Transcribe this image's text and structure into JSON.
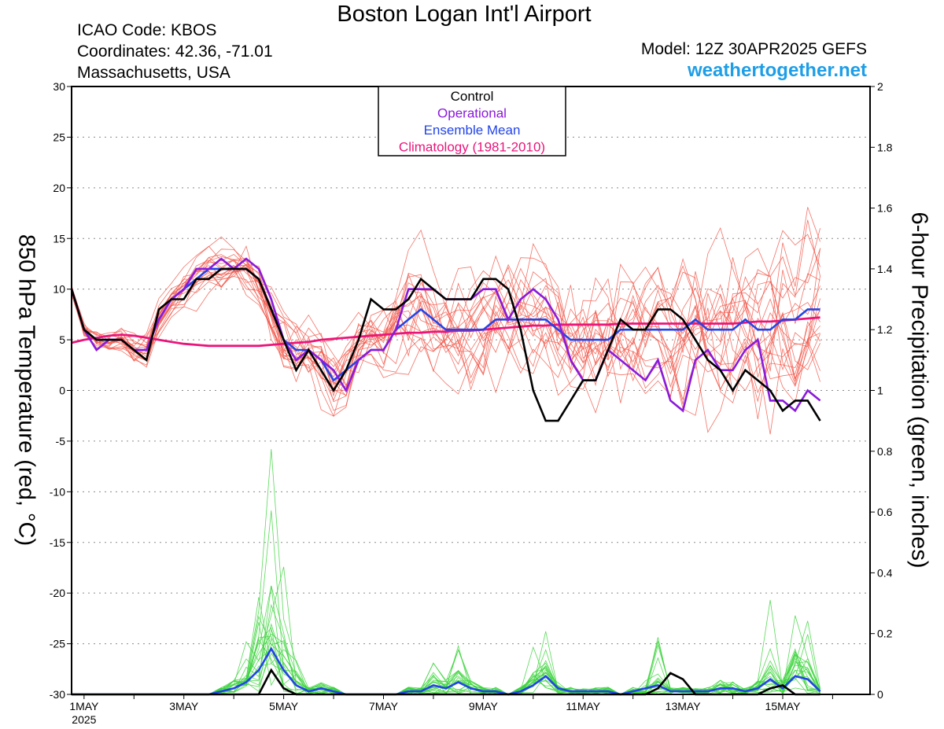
{
  "header": {
    "title": "Boston Logan Int'l Airport",
    "icao": "ICAO Code: KBOS",
    "coordinates": "Coordinates: 42.36, -71.01",
    "region": "Massachusetts, USA",
    "model": "Model: 12Z 30APR2025 GEFS",
    "website": "weathertogether.net"
  },
  "chart_data": {
    "type": "line",
    "title": "Boston Logan Int'l Airport",
    "ylabel_left": "850 hPa Temperature (red, °C)",
    "ylabel_right": "6-hour Precipitation (green, inches)",
    "x_start": "2025-04-30T18:00",
    "x_end": "2025-05-16T18:00",
    "x_tick_labels": [
      "1MAY",
      "3MAY",
      "5MAY",
      "7MAY",
      "9MAY",
      "11MAY",
      "13MAY",
      "15MAY"
    ],
    "x_year_label": "2025",
    "ylim_left": [
      -30,
      30
    ],
    "yticks_left": [
      "30",
      "25",
      "20",
      "15",
      "10",
      "5",
      "0",
      "-5",
      "-10",
      "-15",
      "-20",
      "-25",
      "-30"
    ],
    "ylim_right": [
      0,
      2
    ],
    "yticks_right": [
      "2",
      "1.8",
      "1.6",
      "1.4",
      "1.2",
      "1",
      "0.8",
      "0.6",
      "0.4",
      "0.2",
      "0"
    ],
    "grid": true,
    "legend_position": "top-center",
    "legend": [
      {
        "label": "Control",
        "color": "#000000"
      },
      {
        "label": "Operational",
        "color": "#8a1adb"
      },
      {
        "label": "Ensemble Mean",
        "color": "#2244e8"
      },
      {
        "label": "Climatology (1981-2010)",
        "color": "#ea157a"
      }
    ],
    "colors": {
      "control": "#000000",
      "operational": "#8a1adb",
      "mean": "#2244e8",
      "climatology": "#ea157a",
      "members_temp": "#f25a4e",
      "members_precip": "#3cd43c"
    },
    "temperature": {
      "control": [
        10,
        6,
        5,
        5,
        5,
        4,
        3,
        8,
        9,
        9,
        11,
        11,
        12,
        12,
        12,
        11,
        8,
        5,
        2,
        4,
        2,
        0,
        2,
        5,
        9,
        8,
        8,
        9,
        11,
        10,
        9,
        9,
        9,
        11,
        11,
        10,
        6,
        0,
        -3,
        -3,
        -1,
        1,
        1,
        4,
        7,
        6,
        6,
        8,
        8,
        7,
        5,
        3,
        2,
        0,
        2,
        1,
        0,
        -2,
        -1,
        -1,
        -3
      ],
      "operational": [
        10,
        6,
        4,
        5,
        5,
        4,
        4,
        7,
        9,
        10,
        12,
        12,
        13,
        12,
        13,
        12,
        9,
        5,
        3,
        4,
        3,
        2,
        0,
        3,
        4,
        4,
        6,
        10,
        10,
        10,
        9,
        9,
        9,
        10,
        10,
        7,
        9,
        10,
        9,
        7,
        3,
        1,
        1,
        4,
        3,
        2,
        1,
        3,
        -1,
        -2,
        3,
        4,
        2,
        2,
        4,
        5,
        -1,
        -1,
        -2,
        0,
        -1
      ],
      "mean": [
        10,
        6,
        5,
        5,
        5,
        4,
        4,
        7,
        9,
        10,
        11,
        12,
        12,
        12,
        12,
        11,
        8,
        5,
        4,
        4,
        3,
        1,
        2,
        3,
        4,
        4,
        6,
        7,
        8,
        7,
        6,
        6,
        6,
        6,
        7,
        7,
        7,
        7,
        7,
        6,
        5,
        5,
        5,
        5,
        6,
        6,
        6,
        6,
        6,
        6,
        7,
        6,
        6,
        6,
        7,
        6,
        6,
        7,
        7,
        8,
        8
      ],
      "climatology": [
        4.7,
        5.0,
        5.2,
        5.4,
        5.5,
        5.4,
        5.2,
        5.0,
        4.8,
        4.6,
        4.5,
        4.4,
        4.4,
        4.4,
        4.4,
        4.4,
        4.5,
        4.6,
        4.7,
        4.8,
        5.0,
        5.1,
        5.2,
        5.3,
        5.4,
        5.5,
        5.6,
        5.7,
        5.7,
        5.8,
        5.8,
        5.9,
        5.9,
        6.0,
        6.1,
        6.2,
        6.3,
        6.4,
        6.4,
        6.5,
        6.5,
        6.5,
        6.5,
        6.5,
        6.6,
        6.6,
        6.6,
        6.6,
        6.6,
        6.6,
        6.6,
        6.6,
        6.6,
        6.6,
        6.7,
        6.8,
        6.8,
        6.9,
        7.0,
        7.1,
        7.2
      ]
    },
    "precipitation": {
      "control": [
        0,
        0,
        0,
        0,
        0,
        0,
        0,
        0,
        0,
        0,
        0,
        0,
        0,
        0,
        0,
        0,
        0.08,
        0.02,
        0,
        0,
        0,
        0,
        0,
        0,
        0,
        0,
        0,
        0,
        0,
        0,
        0,
        0,
        0,
        0,
        0,
        0,
        0,
        0,
        0,
        0,
        0,
        0,
        0,
        0,
        0,
        0,
        0,
        0.02,
        0.07,
        0.05,
        0,
        0,
        0,
        0,
        0,
        0,
        0.02,
        0.03,
        0,
        0,
        0
      ],
      "mean": [
        0,
        0,
        0,
        0,
        0,
        0,
        0,
        0,
        0,
        0,
        0,
        0,
        0.01,
        0.02,
        0.04,
        0.08,
        0.15,
        0.08,
        0.03,
        0.01,
        0.02,
        0.01,
        0,
        0,
        0,
        0,
        0,
        0.01,
        0.01,
        0.03,
        0.02,
        0.04,
        0.02,
        0.01,
        0.01,
        0,
        0.01,
        0.03,
        0.06,
        0.02,
        0.01,
        0.01,
        0.01,
        0.01,
        0,
        0.01,
        0.02,
        0.03,
        0.01,
        0.01,
        0.01,
        0.01,
        0.02,
        0.02,
        0.01,
        0.02,
        0.05,
        0.02,
        0.06,
        0.05,
        0.01
      ]
    }
  }
}
